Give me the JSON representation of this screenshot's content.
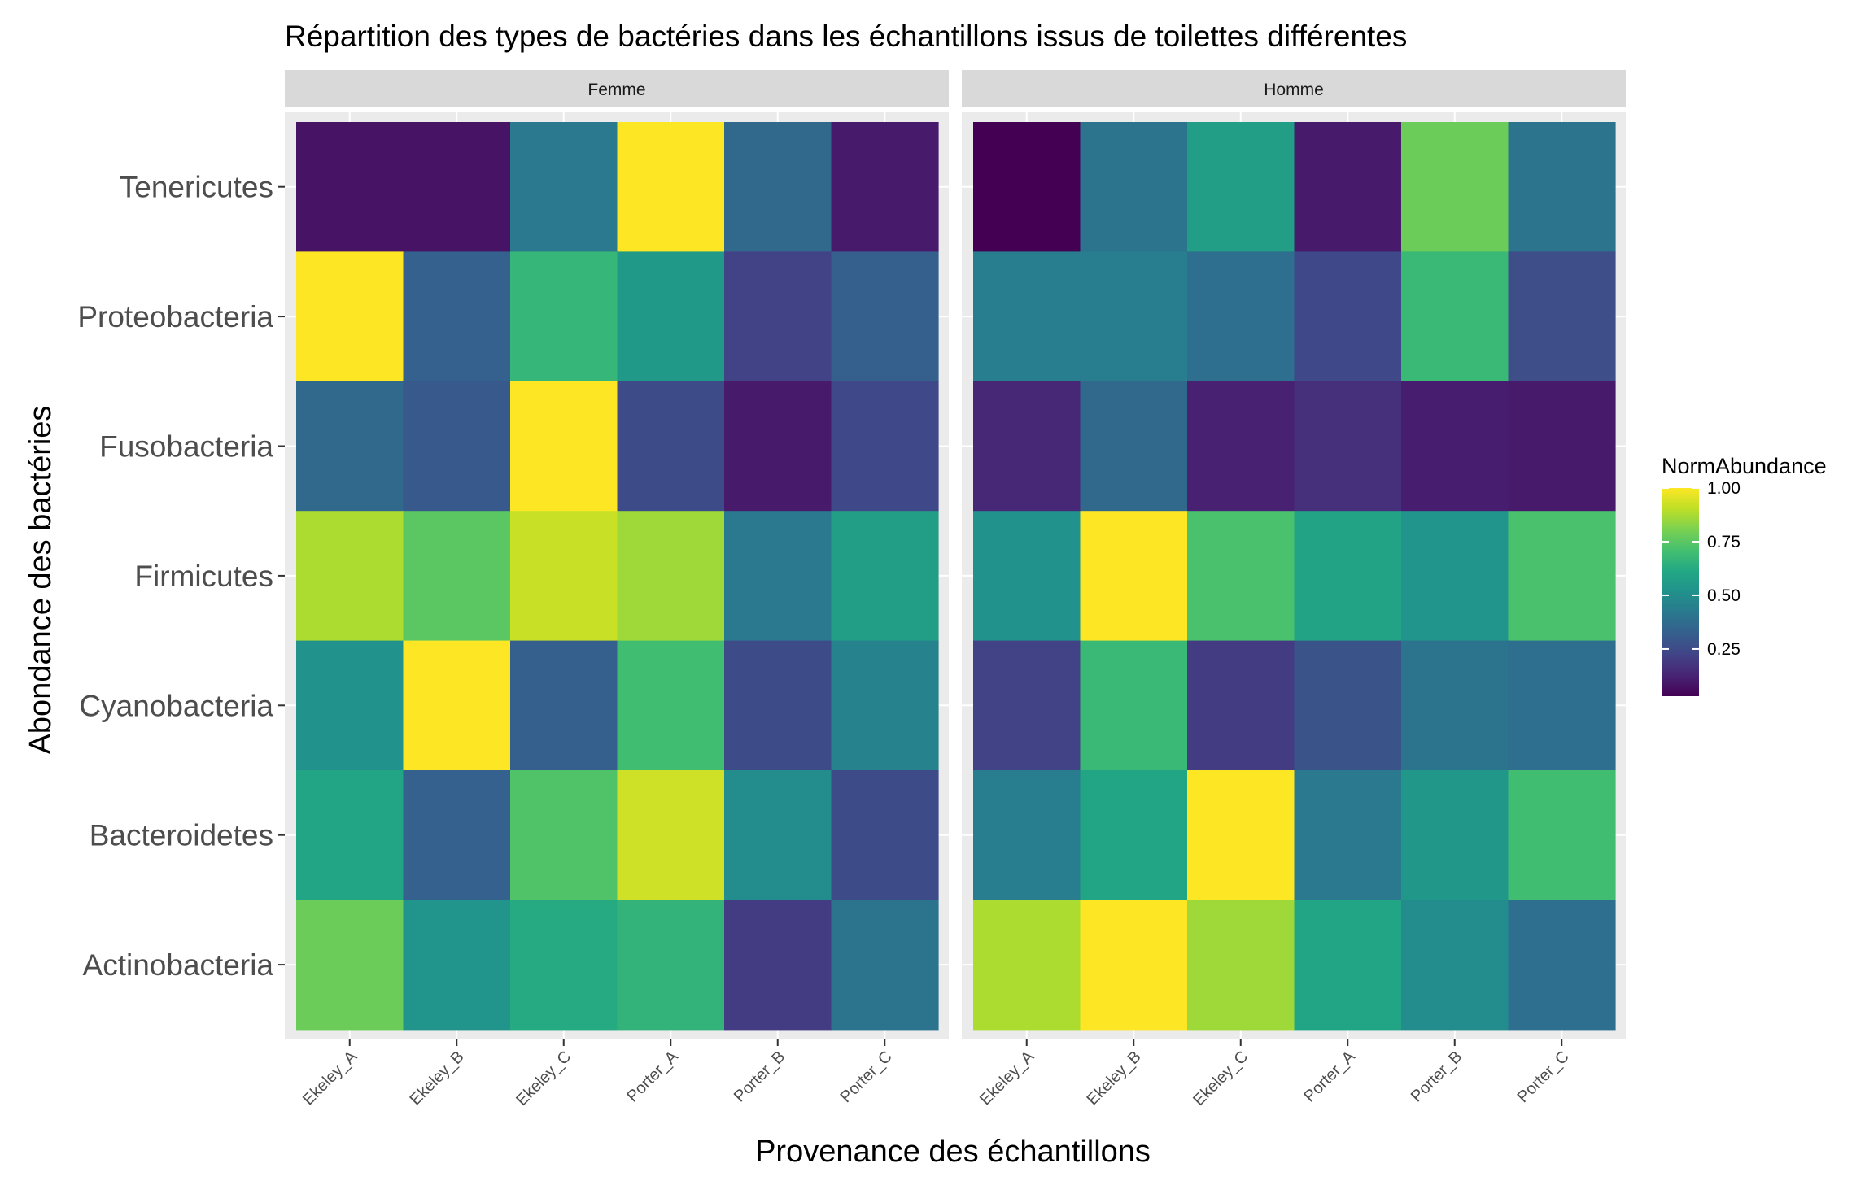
{
  "chart_data": {
    "type": "heatmap",
    "title": "Répartition des types de bactéries dans les échantillons issus de toilettes différentes",
    "xlabel": "Provenance des échantillons",
    "ylabel": "Abondance des bactéries",
    "x": [
      "Ekeley_A",
      "Ekeley_B",
      "Ekeley_C",
      "Porter_A",
      "Porter_B",
      "Porter_C"
    ],
    "y": [
      "Tenericutes",
      "Proteobacteria",
      "Fusobacteria",
      "Firmicutes",
      "Cyanobacteria",
      "Bacteroidetes",
      "Actinobacteria"
    ],
    "value_range": [
      0.03,
      1.0
    ],
    "facets": [
      {
        "label": "Femme",
        "values": [
          [
            0.08,
            0.08,
            0.42,
            1.0,
            0.36,
            0.1
          ],
          [
            1.0,
            0.33,
            0.67,
            0.55,
            0.22,
            0.32
          ],
          [
            0.36,
            0.3,
            1.0,
            0.25,
            0.1,
            0.24
          ],
          [
            0.88,
            0.75,
            0.92,
            0.86,
            0.42,
            0.57
          ],
          [
            0.52,
            1.0,
            0.32,
            0.7,
            0.25,
            0.46
          ],
          [
            0.6,
            0.33,
            0.73,
            0.93,
            0.5,
            0.25
          ],
          [
            0.78,
            0.53,
            0.62,
            0.66,
            0.2,
            0.4
          ]
        ]
      },
      {
        "label": "Homme",
        "values": [
          [
            0.03,
            0.4,
            0.57,
            0.1,
            0.78,
            0.4
          ],
          [
            0.44,
            0.44,
            0.38,
            0.24,
            0.68,
            0.26
          ],
          [
            0.14,
            0.36,
            0.12,
            0.16,
            0.11,
            0.1
          ],
          [
            0.52,
            1.0,
            0.72,
            0.59,
            0.53,
            0.72
          ],
          [
            0.22,
            0.68,
            0.2,
            0.28,
            0.4,
            0.38
          ],
          [
            0.44,
            0.6,
            1.0,
            0.42,
            0.54,
            0.7
          ],
          [
            0.88,
            1.0,
            0.86,
            0.6,
            0.5,
            0.38
          ]
        ]
      }
    ],
    "legend": {
      "title": "NormAbundance",
      "position": "right",
      "ticks": [
        1.0,
        0.75,
        0.5,
        0.25
      ],
      "tick_labels": [
        "1.00",
        "0.75",
        "0.50",
        "0.25"
      ]
    },
    "colormap": "viridis",
    "grid": true
  },
  "colors": {
    "panel_bg": "#EBEBEB",
    "strip_bg": "#D9D9D9",
    "grid": "#FFFFFF",
    "tick_line": "#333333"
  }
}
